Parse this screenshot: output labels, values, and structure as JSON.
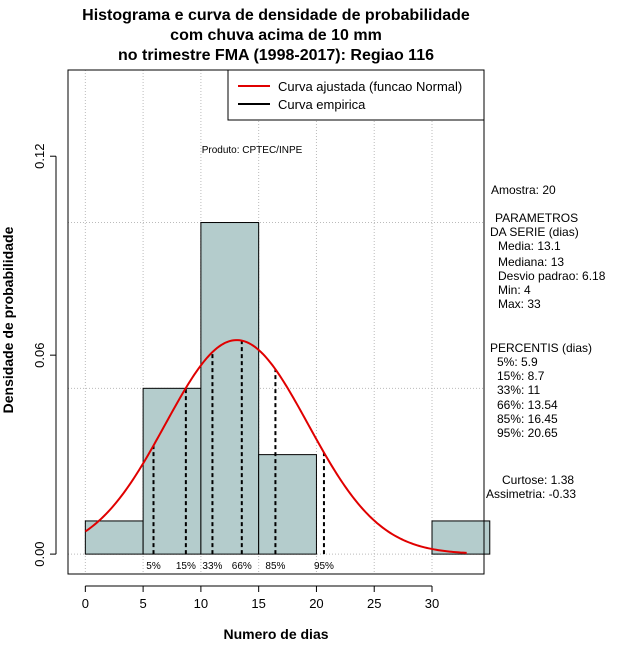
{
  "chart_data": {
    "type": "histogram",
    "title": [
      "Histograma e curva de densidade de probabilidade",
      "com chuva acima de 10 mm",
      "no trimestre FMA (1998-2017): Regiao 116"
    ],
    "xlabel": "Numero de dias",
    "ylabel": "Densidade de probabilidade",
    "xlim": [
      -1.5,
      34.5
    ],
    "ylim": [
      -0.006,
      0.146
    ],
    "x_ticks": [
      0,
      5,
      10,
      15,
      20,
      25,
      30
    ],
    "y_ticks": [
      0.0,
      0.06,
      0.12
    ],
    "y_tick_labels": [
      "0.00",
      "0.06",
      "0.12"
    ],
    "grid": "dotted",
    "bins": [
      {
        "start": 0,
        "end": 5,
        "density": 0.01
      },
      {
        "start": 5,
        "end": 10,
        "density": 0.05
      },
      {
        "start": 10,
        "end": 15,
        "density": 0.1
      },
      {
        "start": 15,
        "end": 20,
        "density": 0.03
      },
      {
        "start": 20,
        "end": 25,
        "density": 0.0
      },
      {
        "start": 25,
        "end": 30,
        "density": 0.0
      },
      {
        "start": 30,
        "end": 35,
        "density": 0.01
      }
    ],
    "normal_fit": {
      "mean": 13.1,
      "sd": 6.18,
      "x_start": 0,
      "x_end": 33,
      "color": "#e00000"
    },
    "percentile_lines": [
      {
        "label": "5%",
        "value": 5.9
      },
      {
        "label": "15%",
        "value": 8.7
      },
      {
        "label": "33%",
        "value": 11
      },
      {
        "label": "66%",
        "value": 13.54
      },
      {
        "label": "85%",
        "value": 16.45
      },
      {
        "label": "95%",
        "value": 20.65
      }
    ],
    "legend": {
      "position": "top-right",
      "entries": [
        {
          "label": "Curva ajustada (funcao Normal)",
          "color": "#e00000"
        },
        {
          "label": "Curva empirica",
          "color": "#000000"
        }
      ]
    },
    "annotation": "Produto: CPTEC/INPE",
    "bar_fill": "#b4cccc"
  },
  "stats_panel": {
    "amostra": "Amostra: 20",
    "params_title_1": "PARAMETROS",
    "params_title_2": "DA SERIE (dias)",
    "params": [
      "Media: 13.1",
      "Mediana: 13",
      "Desvio padrao: 6.18",
      "Min: 4",
      "Max: 33"
    ],
    "percentis_title": "PERCENTIS (dias)",
    "percentis": [
      "5%: 5.9",
      "15%: 8.7",
      "33%: 11",
      "66%: 13.54",
      "85%: 16.45",
      "95%: 20.65"
    ],
    "curtose": "Curtose: 1.38",
    "assimetria": "Assimetria: -0.33"
  }
}
